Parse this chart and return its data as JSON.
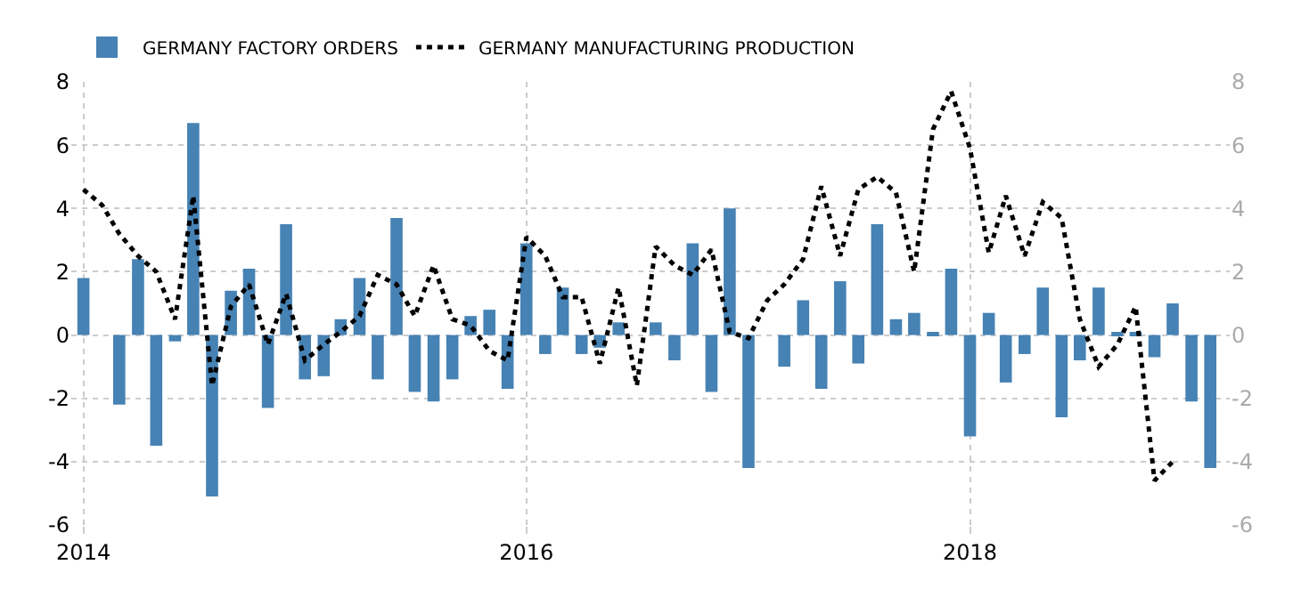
{
  "chart_data": {
    "type": "bar",
    "xlim": [
      "2013-12-12",
      "2019-03-05"
    ],
    "xticks": [
      {
        "value": "2014-01",
        "label": "2014"
      },
      {
        "value": "2016-01",
        "label": "2016"
      },
      {
        "value": "2018-01",
        "label": "2018"
      }
    ],
    "ylim": [
      -6,
      8
    ],
    "yticks": [
      -6,
      -4,
      -2,
      0,
      2,
      4,
      6,
      8
    ],
    "y2lim": [
      -6,
      8
    ],
    "y2ticks": [
      -6,
      -4,
      -2,
      0,
      2,
      4,
      6,
      8
    ],
    "grid": true,
    "legend": "top left",
    "series": [
      {
        "name": "GERMANY FACTORY ORDERS",
        "color": "#4682b4",
        "x": [
          "2014-01",
          "2014-02",
          "2014-03",
          "2014-04",
          "2014-05",
          "2014-06",
          "2014-07",
          "2014-08",
          "2014-09",
          "2014-10",
          "2014-11",
          "2014-12",
          "2015-01",
          "2015-02",
          "2015-03",
          "2015-04",
          "2015-05",
          "2015-06",
          "2015-07",
          "2015-08",
          "2015-09",
          "2015-10",
          "2015-11",
          "2015-12",
          "2016-01",
          "2016-02",
          "2016-03",
          "2016-04",
          "2016-05",
          "2016-06",
          "2016-07",
          "2016-08",
          "2016-09",
          "2016-10",
          "2016-11",
          "2016-12",
          "2017-01",
          "2017-02",
          "2017-03",
          "2017-04",
          "2017-05",
          "2017-06",
          "2017-07",
          "2017-08",
          "2017-09",
          "2017-10",
          "2017-11",
          "2017-12",
          "2018-01",
          "2018-02",
          "2018-03",
          "2018-04",
          "2018-05",
          "2018-06",
          "2018-07",
          "2018-08",
          "2018-09",
          "2018-10",
          "2018-11",
          "2018-12",
          "2019-01",
          "2019-02"
        ],
        "values": [
          1.8,
          0,
          -2.2,
          2.4,
          -3.5,
          -0.2,
          6.7,
          -5.1,
          1.4,
          2.1,
          -2.3,
          3.5,
          -1.4,
          -1.3,
          0.5,
          1.8,
          -1.4,
          3.7,
          -1.8,
          -2.1,
          -1.4,
          0.6,
          0.8,
          -1.7,
          2.9,
          -0.6,
          1.5,
          -0.6,
          -0.4,
          0.4,
          0,
          0.4,
          -0.8,
          2.9,
          -1.8,
          4.0,
          -4.2,
          0,
          -1.0,
          1.1,
          -1.7,
          1.7,
          -0.9,
          3.5,
          0.5,
          0.7,
          0.1,
          2.1,
          -3.2,
          0.7,
          -1.5,
          -0.6,
          1.5,
          -2.6,
          -0.8,
          1.5,
          0.1,
          0.1,
          -0.7,
          1.0,
          -2.1,
          -4.2
        ]
      },
      {
        "name": "GERMANY MANUFACTURING PRODUCTION",
        "type": "line",
        "axis": "y2",
        "color": "#000000",
        "line_style": "dotted",
        "marker": "none",
        "x": [
          "2014-01",
          "2014-02",
          "2014-03",
          "2014-04",
          "2014-05",
          "2014-06",
          "2014-07",
          "2014-08",
          "2014-09",
          "2014-10",
          "2014-11",
          "2014-12",
          "2015-01",
          "2015-02",
          "2015-03",
          "2015-04",
          "2015-05",
          "2015-06",
          "2015-07",
          "2015-08",
          "2015-09",
          "2015-10",
          "2015-11",
          "2015-12",
          "2016-01",
          "2016-02",
          "2016-03",
          "2016-04",
          "2016-05",
          "2016-06",
          "2016-07",
          "2016-08",
          "2016-09",
          "2016-10",
          "2016-11",
          "2016-12",
          "2017-01",
          "2017-02",
          "2017-03",
          "2017-04",
          "2017-05",
          "2017-06",
          "2017-07",
          "2017-08",
          "2017-09",
          "2017-10",
          "2017-11",
          "2017-12",
          "2018-01",
          "2018-02",
          "2018-03",
          "2018-04",
          "2018-05",
          "2018-06",
          "2018-07",
          "2018-08",
          "2018-09",
          "2018-10",
          "2018-11",
          "2018-12"
        ],
        "values": [
          4.6,
          4.1,
          3.2,
          2.5,
          2.0,
          0.5,
          4.4,
          -1.6,
          0.9,
          1.6,
          -0.3,
          1.3,
          -0.8,
          -0.3,
          0.1,
          0.6,
          1.9,
          1.6,
          0.6,
          2.2,
          0.5,
          0.3,
          -0.5,
          -0.8,
          3.1,
          2.5,
          1.2,
          1.2,
          -0.9,
          1.5,
          -1.6,
          2.8,
          2.2,
          1.9,
          2.7,
          0.1,
          -0.1,
          1.1,
          1.6,
          2.4,
          4.7,
          2.5,
          4.6,
          5.0,
          4.5,
          2.0,
          6.5,
          7.7,
          5.9,
          2.6,
          4.4,
          2.5,
          4.2,
          3.7,
          0.5,
          -1.0,
          -0.3,
          0.9,
          -4.6,
          -4.0
        ]
      }
    ]
  }
}
